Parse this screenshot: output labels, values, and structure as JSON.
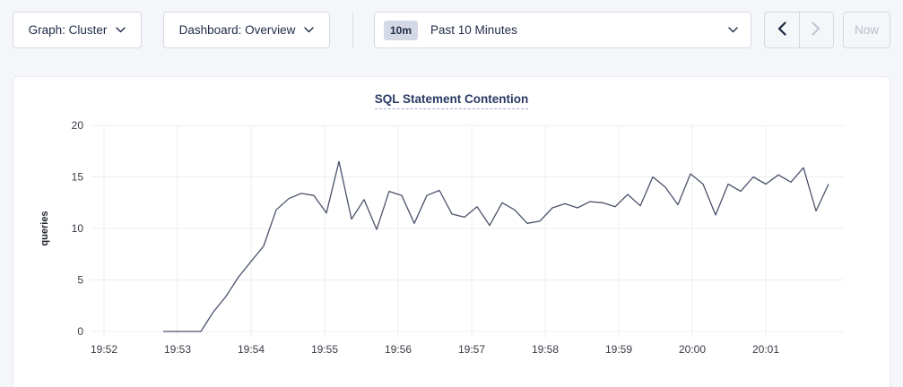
{
  "toolbar": {
    "graph_dropdown_label": "Graph: Cluster",
    "dashboard_dropdown_label": "Dashboard: Overview",
    "time_range_badge": "10m",
    "time_range_label": "Past 10 Minutes",
    "now_button_label": "Now"
  },
  "icons": {
    "chevron_down": "⌄",
    "chevron_left": "‹",
    "chevron_right": "›"
  },
  "chart": {
    "title": "SQL Statement Contention"
  },
  "chart_data": {
    "type": "line",
    "title": "SQL Statement Contention",
    "xlabel": "",
    "ylabel": "queries",
    "ylim": [
      0,
      20
    ],
    "yticks": [
      0,
      5,
      10,
      15,
      20
    ],
    "xticks": [
      "19:52",
      "19:53",
      "19:54",
      "19:55",
      "19:56",
      "19:57",
      "19:58",
      "19:59",
      "20:00",
      "20:01"
    ],
    "grid": true,
    "legend_position": "none",
    "line_color": "#4a526b",
    "series": [
      {
        "name": "SQL statement contention",
        "unit": "queries",
        "start_time": "19:52:50",
        "interval_seconds": 10,
        "values": [
          0,
          0,
          0,
          0,
          1.9,
          3.4,
          5.3,
          6.8,
          8.3,
          11.8,
          12.9,
          13.4,
          13.2,
          11.5,
          16.5,
          10.9,
          12.8,
          9.9,
          13.6,
          13.2,
          10.5,
          13.2,
          13.7,
          11.4,
          11.1,
          12.1,
          10.3,
          12.5,
          11.8,
          10.5,
          10.7,
          12.0,
          12.4,
          12.0,
          12.6,
          12.5,
          12.1,
          13.3,
          12.2,
          15.0,
          14.0,
          12.3,
          15.3,
          14.3,
          11.3,
          14.3,
          13.6,
          15.0,
          14.3,
          15.2,
          14.5,
          15.9,
          11.7,
          14.3
        ]
      }
    ]
  },
  "colors": {
    "page_background": "#f4f6fa",
    "panel_background": "#ffffff",
    "panel_border": "#e7e9ef",
    "control_border": "#d6d9e3",
    "text_primary": "#1e2a47",
    "title_color": "#2a3a63",
    "gridline": "#ededf1",
    "tick_text": "#383c44",
    "line_color": "#4a526b",
    "disabled_text": "#b9bec9"
  }
}
